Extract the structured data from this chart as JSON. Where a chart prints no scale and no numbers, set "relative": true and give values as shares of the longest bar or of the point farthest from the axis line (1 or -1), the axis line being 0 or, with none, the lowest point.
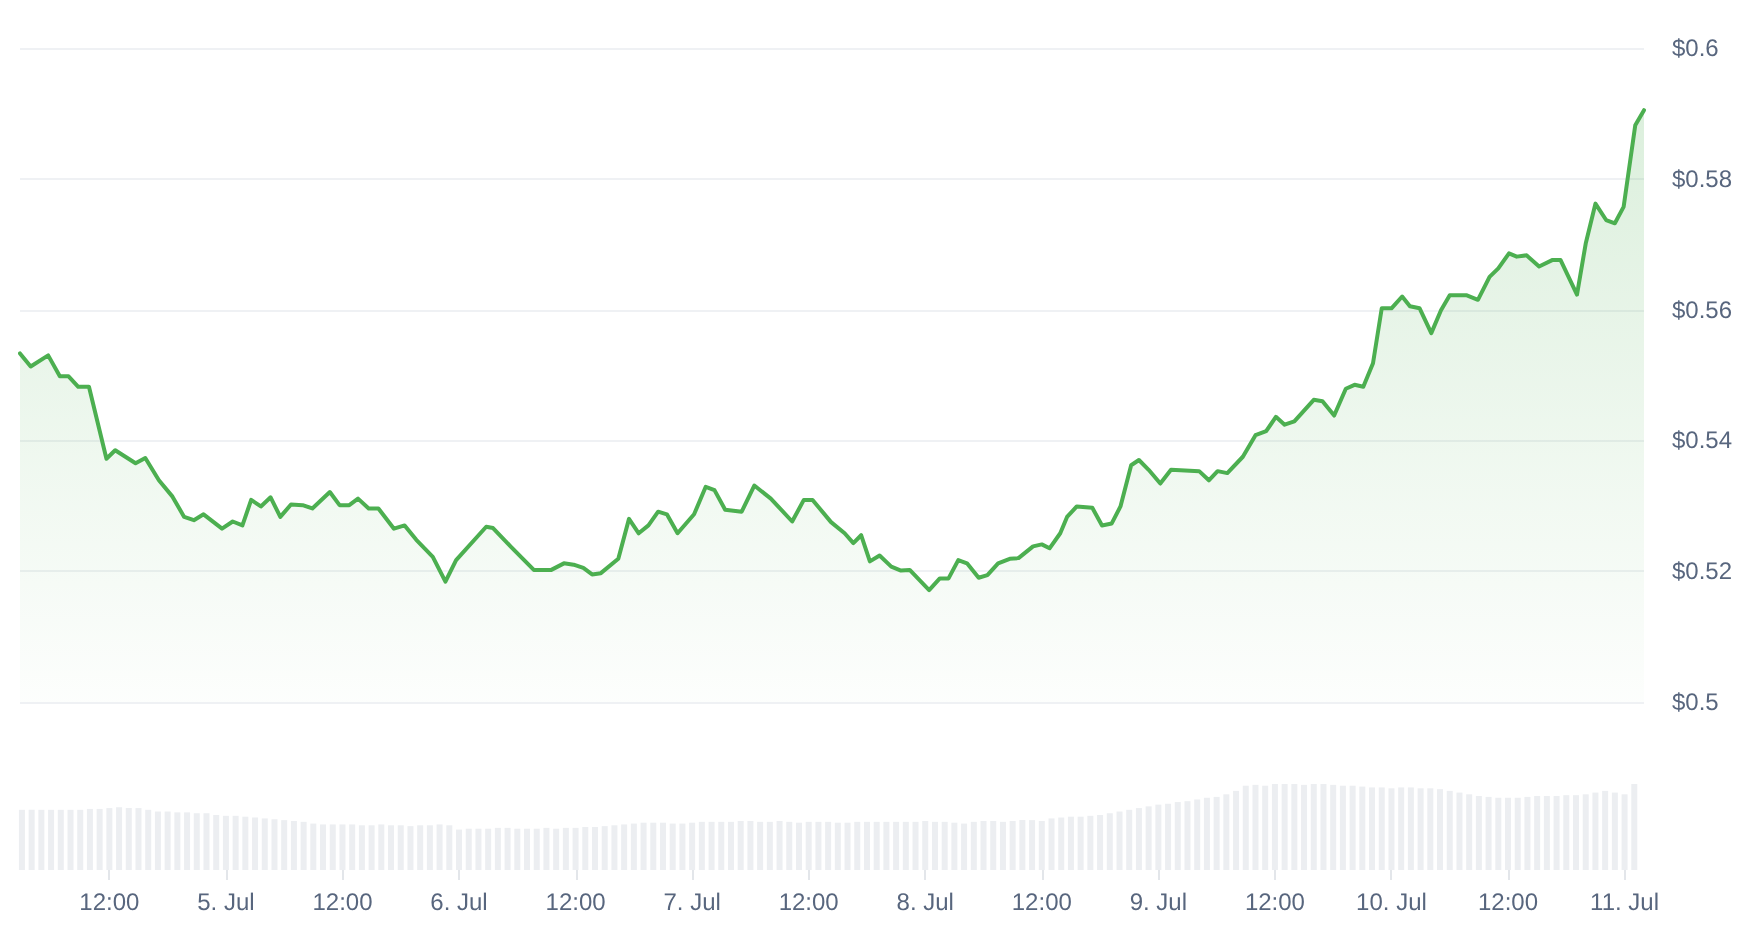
{
  "chart_data": [
    {
      "type": "area",
      "xlim": [
        "--07-04T02:48",
        "--07-11T02:00"
      ],
      "ylim": [
        0.5,
        0.6
      ],
      "yticks": [
        {
          "value": 0.5,
          "label": "$0.5"
        },
        {
          "value": 0.52,
          "label": "$0.52"
        },
        {
          "value": 0.54,
          "label": "$0.54"
        },
        {
          "value": 0.56,
          "label": "$0.56"
        },
        {
          "value": 0.58,
          "label": "$0.58"
        },
        {
          "value": 0.6,
          "label": "$0.6"
        }
      ],
      "grid": "y",
      "tick_labels": "y",
      "marker": "none",
      "series": [
        {
          "color": "#4caf50",
          "x": [
            "--07-04T02:48",
            "--07-04T03:54",
            "--07-04T05:42",
            "--07-04T06:54",
            "--07-04T07:48",
            "--07-04T08:48",
            "--07-04T09:54",
            "--07-04T11:42",
            "--07-04T12:36",
            "--07-04T14:42",
            "--07-04T15:42",
            "--07-04T17:06",
            "--07-04T18:30",
            "--07-04T19:42",
            "--07-04T20:42",
            "--07-04T21:42",
            "--07-04T23:36",
            "--07-05T00:42",
            "--07-05T01:42",
            "--07-05T02:36",
            "--07-05T03:36",
            "--07-05T04:36",
            "--07-05T05:36",
            "--07-05T06:42",
            "--07-05T07:54",
            "--07-05T08:54",
            "--07-05T10:42",
            "--07-05T11:42",
            "--07-05T12:42",
            "--07-05T13:36",
            "--07-05T14:42",
            "--07-05T15:42",
            "--07-05T17:18",
            "--07-05T18:24",
            "--07-05T19:36",
            "--07-05T21:18",
            "--07-05T22:36",
            "--07-05T23:42",
            "--07-06T02:48",
            "--07-06T03:30",
            "--07-06T05:18",
            "--07-06T07:42",
            "--07-06T09:30",
            "--07-06T10:48",
            "--07-06T11:48",
            "--07-06T12:48",
            "--07-06T13:42",
            "--07-06T14:36",
            "--07-06T16:24",
            "--07-06T17:30",
            "--07-06T18:30",
            "--07-06T19:30",
            "--07-06T20:30",
            "--07-06T21:24",
            "--07-06T22:30",
            "--07-07T00:12",
            "--07-07T01:24",
            "--07-07T02:18",
            "--07-07T03:24",
            "--07-07T05:06",
            "--07-07T06:24",
            "--07-07T08:06",
            "--07-07T10:18",
            "--07-07T11:30",
            "--07-07T12:24",
            "--07-07T14:18",
            "--07-07T15:42",
            "--07-07T16:36",
            "--07-07T17:24",
            "--07-07T18:18",
            "--07-07T19:18",
            "--07-07T20:30",
            "--07-07T21:30",
            "--07-07T22:24",
            "--07-08T00:24",
            "--07-08T01:30",
            "--07-08T02:24",
            "--07-08T03:24",
            "--07-08T04:18",
            "--07-08T05:30",
            "--07-08T06:24",
            "--07-08T07:30",
            "--07-08T08:42",
            "--07-08T09:36",
            "--07-08T11:06",
            "--07-08T12:00",
            "--07-08T12:48",
            "--07-08T13:54",
            "--07-08T14:36",
            "--07-08T15:36",
            "--07-08T17:12",
            "--07-08T18:12",
            "--07-08T19:12",
            "--07-08T20:06",
            "--07-08T21:12",
            "--07-08T22:00",
            "--07-08T23:00",
            "--07-09T00:12",
            "--07-09T01:18",
            "--07-09T04:12",
            "--07-09T05:12",
            "--07-09T06:06",
            "--07-09T07:06",
            "--07-09T08:42",
            "--07-09T10:00",
            "--07-09T11:06",
            "--07-09T12:06",
            "--07-09T13:00",
            "--07-09T14:00",
            "--07-09T16:00",
            "--07-09T16:54",
            "--07-09T18:06",
            "--07-09T19:18",
            "--07-09T20:12",
            "--07-09T21:06",
            "--07-09T22:06",
            "--07-09T23:00",
            "--07-10T00:00",
            "--07-10T01:06",
            "--07-10T01:54",
            "--07-10T02:54",
            "--07-10T04:06",
            "--07-10T05:06",
            "--07-10T06:00",
            "--07-10T07:42",
            "--07-10T08:54",
            "--07-10T10:06",
            "--07-10T11:00",
            "--07-10T12:06",
            "--07-10T12:54",
            "--07-10T13:54",
            "--07-10T15:12",
            "--07-10T16:36",
            "--07-10T17:24",
            "--07-10T19:06",
            "--07-10T20:00",
            "--07-10T21:00",
            "--07-10T22:06",
            "--07-10T23:00",
            "--07-10T23:54",
            "--07-11T01:06",
            "--07-11T02:00"
          ],
          "values": [
            0.5533,
            0.5513,
            0.553,
            0.5498,
            0.5498,
            0.5482,
            0.5482,
            0.5372,
            0.5385,
            0.5365,
            0.5373,
            0.5339,
            0.5314,
            0.5283,
            0.5278,
            0.5287,
            0.5265,
            0.5276,
            0.527,
            0.5309,
            0.5299,
            0.5313,
            0.5283,
            0.5302,
            0.5301,
            0.5296,
            0.5321,
            0.5301,
            0.5301,
            0.5311,
            0.5296,
            0.5296,
            0.5265,
            0.527,
            0.5248,
            0.5222,
            0.5184,
            0.5217,
            0.5268,
            0.5266,
            0.5238,
            0.5202,
            0.5202,
            0.5212,
            0.521,
            0.5205,
            0.5195,
            0.5197,
            0.5219,
            0.528,
            0.5258,
            0.527,
            0.5291,
            0.5287,
            0.5258,
            0.5287,
            0.5329,
            0.5324,
            0.5294,
            0.5291,
            0.5331,
            0.5311,
            0.5276,
            0.5309,
            0.5309,
            0.5275,
            0.5258,
            0.5243,
            0.5255,
            0.5215,
            0.5224,
            0.5207,
            0.5201,
            0.5202,
            0.5171,
            0.5189,
            0.5189,
            0.5217,
            0.5212,
            0.519,
            0.5194,
            0.5212,
            0.5219,
            0.522,
            0.5238,
            0.5241,
            0.5235,
            0.5258,
            0.5283,
            0.5299,
            0.5297,
            0.527,
            0.5273,
            0.5299,
            0.5362,
            0.537,
            0.5355,
            0.5334,
            0.5355,
            0.5353,
            0.5339,
            0.5353,
            0.535,
            0.5375,
            0.5408,
            0.5414,
            0.5436,
            0.5424,
            0.5429,
            0.5462,
            0.546,
            0.5438,
            0.5479,
            0.5485,
            0.5482,
            0.5518,
            0.5602,
            0.5602,
            0.562,
            0.5605,
            0.5602,
            0.5564,
            0.5599,
            0.5622,
            0.5622,
            0.5615,
            0.565,
            0.5663,
            0.5686,
            0.5681,
            0.5683,
            0.5666,
            0.5676,
            0.5676,
            0.5623,
            0.5701,
            0.5762,
            0.5737,
            0.5732,
            0.5757,
            0.5882,
            0.5905
          ]
        }
      ]
    },
    {
      "type": "bar",
      "relative": true,
      "xlim": [
        "--07-04T02:48",
        "--07-11T02:00"
      ],
      "xticks": [
        {
          "value": "--07-04T12:00",
          "label": "12:00"
        },
        {
          "value": "--07-05",
          "label": "5. Jul"
        },
        {
          "value": "--07-05T12:00",
          "label": "12:00"
        },
        {
          "value": "--07-06",
          "label": "6. Jul"
        },
        {
          "value": "--07-06T12:00",
          "label": "12:00"
        },
        {
          "value": "--07-07",
          "label": "7. Jul"
        },
        {
          "value": "--07-07T12:00",
          "label": "12:00"
        },
        {
          "value": "--07-08",
          "label": "8. Jul"
        },
        {
          "value": "--07-08T12:00",
          "label": "12:00"
        },
        {
          "value": "--07-09",
          "label": "9. Jul"
        },
        {
          "value": "--07-09T12:00",
          "label": "12:00"
        },
        {
          "value": "--07-10",
          "label": "10. Jul"
        },
        {
          "value": "--07-10T12:00",
          "label": "12:00"
        },
        {
          "value": "--07-11",
          "label": "11. Jul"
        }
      ],
      "tick_labels": "x",
      "series": [
        {
          "color": "#eceef1",
          "x": [
            "--07-04T03:00",
            "--07-04T04:00",
            "--07-04T05:00",
            "--07-04T06:00",
            "--07-04T07:00",
            "--07-04T08:00",
            "--07-04T09:00",
            "--07-04T10:00",
            "--07-04T11:00",
            "--07-04T12:00",
            "--07-04T13:00",
            "--07-04T14:00",
            "--07-04T15:00",
            "--07-04T16:00",
            "--07-04T17:00",
            "--07-04T18:00",
            "--07-04T19:00",
            "--07-04T20:00",
            "--07-04T21:00",
            "--07-04T22:00",
            "--07-04T23:00",
            "--07-05T00:00",
            "--07-05T01:00",
            "--07-05T02:00",
            "--07-05T03:00",
            "--07-05T04:00",
            "--07-05T05:00",
            "--07-05T06:00",
            "--07-05T07:00",
            "--07-05T08:00",
            "--07-05T09:00",
            "--07-05T10:00",
            "--07-05T11:00",
            "--07-05T12:00",
            "--07-05T13:00",
            "--07-05T14:00",
            "--07-05T15:00",
            "--07-05T16:00",
            "--07-05T17:00",
            "--07-05T18:00",
            "--07-05T19:00",
            "--07-05T20:00",
            "--07-05T21:00",
            "--07-05T22:00",
            "--07-05T23:00",
            "--07-06T00:00",
            "--07-06T01:00",
            "--07-06T02:00",
            "--07-06T03:00",
            "--07-06T04:00",
            "--07-06T05:00",
            "--07-06T06:00",
            "--07-06T07:00",
            "--07-06T08:00",
            "--07-06T09:00",
            "--07-06T10:00",
            "--07-06T11:00",
            "--07-06T12:00",
            "--07-06T13:00",
            "--07-06T14:00",
            "--07-06T15:00",
            "--07-06T16:00",
            "--07-06T17:00",
            "--07-06T18:00",
            "--07-06T19:00",
            "--07-06T20:00",
            "--07-06T21:00",
            "--07-06T22:00",
            "--07-06T23:00",
            "--07-07T00:00",
            "--07-07T01:00",
            "--07-07T02:00",
            "--07-07T03:00",
            "--07-07T04:00",
            "--07-07T05:00",
            "--07-07T06:00",
            "--07-07T07:00",
            "--07-07T08:00",
            "--07-07T09:00",
            "--07-07T10:00",
            "--07-07T11:00",
            "--07-07T12:00",
            "--07-07T13:00",
            "--07-07T14:00",
            "--07-07T15:00",
            "--07-07T16:00",
            "--07-07T17:00",
            "--07-07T18:00",
            "--07-07T19:00",
            "--07-07T20:00",
            "--07-07T21:00",
            "--07-07T22:00",
            "--07-07T23:00",
            "--07-08T00:00",
            "--07-08T01:00",
            "--07-08T02:00",
            "--07-08T03:00",
            "--07-08T04:00",
            "--07-08T05:00",
            "--07-08T06:00",
            "--07-08T07:00",
            "--07-08T08:00",
            "--07-08T09:00",
            "--07-08T10:00",
            "--07-08T11:00",
            "--07-08T12:00",
            "--07-08T13:00",
            "--07-08T14:00",
            "--07-08T15:00",
            "--07-08T16:00",
            "--07-08T17:00",
            "--07-08T18:00",
            "--07-08T19:00",
            "--07-08T20:00",
            "--07-08T21:00",
            "--07-08T22:00",
            "--07-08T23:00",
            "--07-09T00:00",
            "--07-09T01:00",
            "--07-09T02:00",
            "--07-09T03:00",
            "--07-09T04:00",
            "--07-09T05:00",
            "--07-09T06:00",
            "--07-09T07:00",
            "--07-09T08:00",
            "--07-09T09:00",
            "--07-09T10:00",
            "--07-09T11:00",
            "--07-09T12:00",
            "--07-09T13:00",
            "--07-09T14:00",
            "--07-09T15:00",
            "--07-09T16:00",
            "--07-09T17:00",
            "--07-09T18:00",
            "--07-09T19:00",
            "--07-09T20:00",
            "--07-09T21:00",
            "--07-09T22:00",
            "--07-09T23:00",
            "--07-10T00:00",
            "--07-10T01:00",
            "--07-10T02:00",
            "--07-10T03:00",
            "--07-10T04:00",
            "--07-10T05:00",
            "--07-10T06:00",
            "--07-10T07:00",
            "--07-10T08:00",
            "--07-10T09:00",
            "--07-10T10:00",
            "--07-10T11:00",
            "--07-10T12:00",
            "--07-10T13:00",
            "--07-10T14:00",
            "--07-10T15:00",
            "--07-10T16:00",
            "--07-10T17:00",
            "--07-10T18:00",
            "--07-10T19:00",
            "--07-10T20:00",
            "--07-10T21:00",
            "--07-10T22:00",
            "--07-10T23:00",
            "--07-11T00:00",
            "--07-11T01:00"
          ],
          "values": [
            0.7,
            0.7,
            0.7,
            0.7,
            0.7,
            0.7,
            0.7,
            0.71,
            0.71,
            0.72,
            0.73,
            0.72,
            0.72,
            0.7,
            0.68,
            0.68,
            0.67,
            0.67,
            0.66,
            0.66,
            0.64,
            0.63,
            0.63,
            0.62,
            0.61,
            0.6,
            0.59,
            0.58,
            0.57,
            0.56,
            0.54,
            0.53,
            0.53,
            0.53,
            0.53,
            0.52,
            0.52,
            0.53,
            0.52,
            0.52,
            0.51,
            0.52,
            0.52,
            0.53,
            0.52,
            0.47,
            0.48,
            0.48,
            0.48,
            0.49,
            0.49,
            0.48,
            0.48,
            0.48,
            0.49,
            0.48,
            0.49,
            0.49,
            0.5,
            0.5,
            0.51,
            0.52,
            0.53,
            0.54,
            0.55,
            0.55,
            0.55,
            0.54,
            0.54,
            0.55,
            0.56,
            0.56,
            0.56,
            0.56,
            0.57,
            0.57,
            0.56,
            0.56,
            0.57,
            0.56,
            0.55,
            0.56,
            0.56,
            0.56,
            0.55,
            0.55,
            0.56,
            0.56,
            0.56,
            0.56,
            0.56,
            0.56,
            0.56,
            0.57,
            0.56,
            0.56,
            0.55,
            0.54,
            0.56,
            0.57,
            0.57,
            0.56,
            0.57,
            0.58,
            0.58,
            0.57,
            0.6,
            0.61,
            0.62,
            0.62,
            0.63,
            0.64,
            0.66,
            0.68,
            0.7,
            0.72,
            0.74,
            0.76,
            0.77,
            0.79,
            0.8,
            0.82,
            0.84,
            0.85,
            0.88,
            0.92,
            0.98,
            0.99,
            0.98,
            1.0,
            1.0,
            1.0,
            0.99,
            1.0,
            1.0,
            0.99,
            0.98,
            0.98,
            0.97,
            0.96,
            0.96,
            0.95,
            0.96,
            0.96,
            0.95,
            0.95,
            0.94,
            0.92,
            0.9,
            0.88,
            0.86,
            0.85,
            0.84,
            0.84,
            0.84,
            0.85,
            0.86,
            0.86,
            0.86,
            0.87,
            0.87,
            0.88,
            0.9,
            0.92,
            0.9,
            0.88,
            1.0
          ]
        }
      ]
    }
  ]
}
